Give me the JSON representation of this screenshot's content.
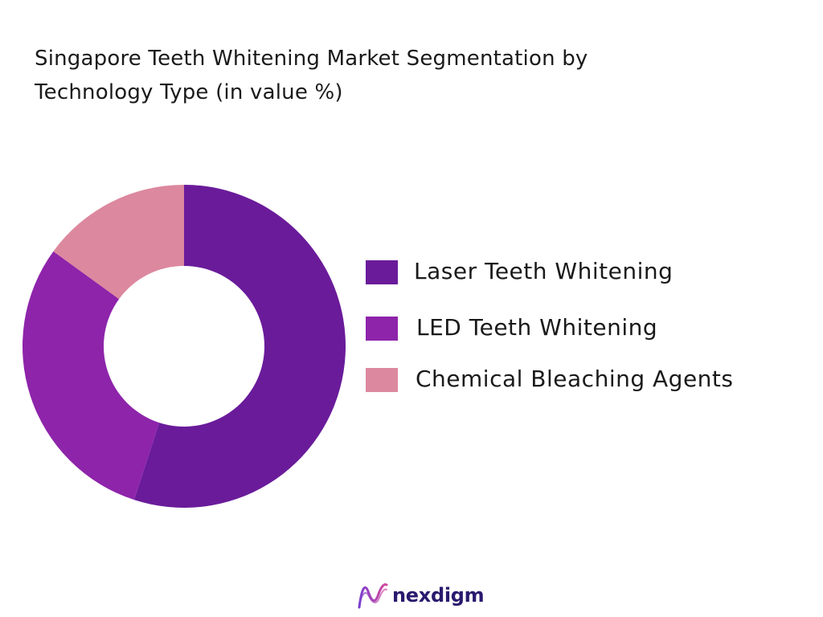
{
  "chart_data": {
    "type": "pie",
    "title_lines": [
      "Singapore Teeth Whitening Market Segmentation by",
      "Technology Type (in value %)"
    ],
    "series": [
      {
        "name": "Laser Teeth Whitening",
        "value": 55,
        "color": "#6a1b9a"
      },
      {
        "name": "LED Teeth Whitening",
        "value": 30,
        "color": "#8e24aa"
      },
      {
        "name": "Chemical Bleaching Agents",
        "value": 15,
        "color": "#dc889e"
      }
    ],
    "legend_position": "right",
    "style": "donut"
  },
  "brand": {
    "name": "nexdigm",
    "logo_icon": "nexdigm-wave-logo-icon"
  }
}
